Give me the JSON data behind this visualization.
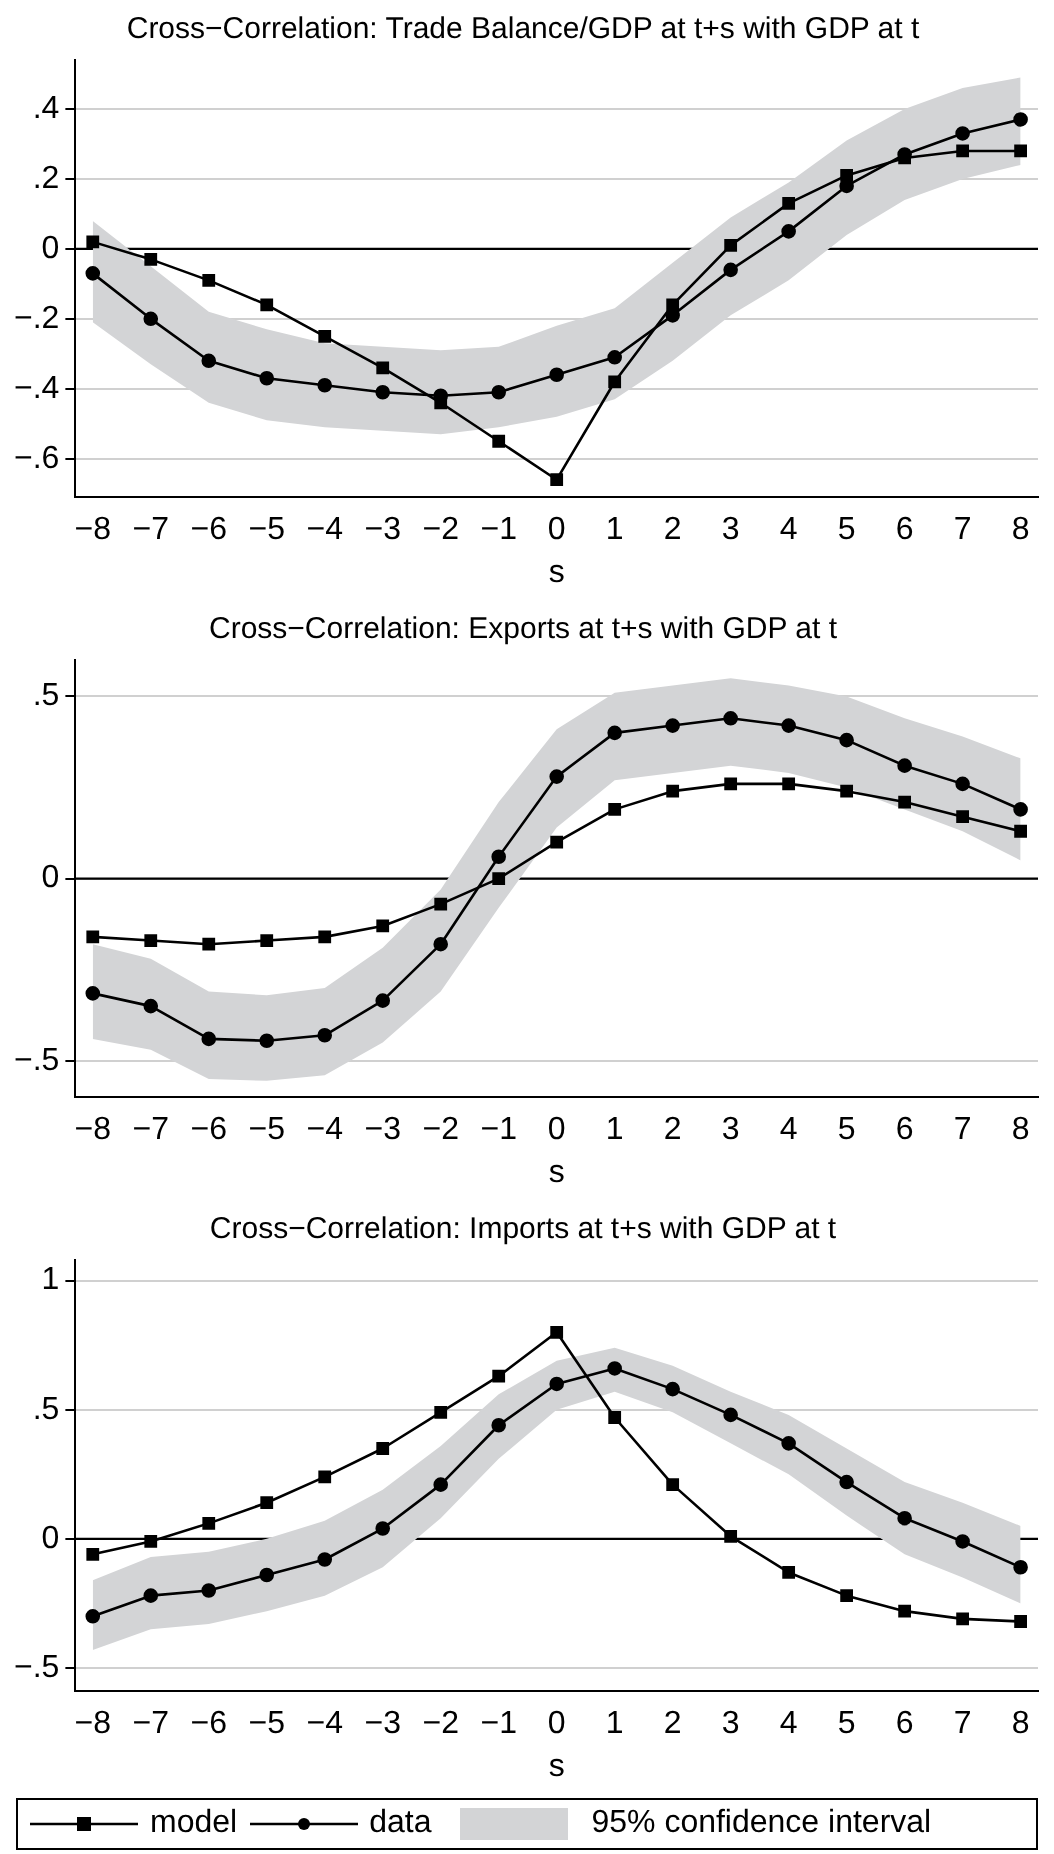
{
  "chart_data": [
    {
      "type": "line",
      "title": "Cross−Correlation: Trade Balance/GDP at t+s with GDP at t",
      "xlabel": "s",
      "x": [
        -8,
        -7,
        -6,
        -5,
        -4,
        -3,
        -2,
        -1,
        0,
        1,
        2,
        3,
        4,
        5,
        6,
        7,
        8
      ],
      "xlim": [
        -8.3,
        8.3
      ],
      "xticks": [
        {
          "value": -8,
          "label": "−8"
        },
        {
          "value": -7,
          "label": "−7"
        },
        {
          "value": -6,
          "label": "−6"
        },
        {
          "value": -5,
          "label": "−5"
        },
        {
          "value": -4,
          "label": "−4"
        },
        {
          "value": -3,
          "label": "−3"
        },
        {
          "value": -2,
          "label": "−2"
        },
        {
          "value": -1,
          "label": "−1"
        },
        0,
        1,
        2,
        3,
        4,
        5,
        6,
        7,
        8
      ],
      "ylim": [
        -0.71,
        0.54
      ],
      "yticks": [
        {
          "value": -0.6,
          "label": "−.6"
        },
        {
          "value": -0.4,
          "label": "−.4"
        },
        {
          "value": -0.2,
          "label": "−.2"
        },
        {
          "value": 0,
          "label": "0"
        },
        {
          "value": 0.2,
          "label": ".2"
        },
        {
          "value": 0.4,
          "label": ".4"
        }
      ],
      "grid": "y",
      "legend": false,
      "ref_lines": [
        {
          "axis": "y",
          "value": 0,
          "color": "#000000"
        }
      ],
      "series": [
        {
          "color": "#000000",
          "marker": "square",
          "values": [
            0.02,
            -0.03,
            -0.09,
            -0.16,
            -0.25,
            -0.34,
            -0.44,
            -0.55,
            -0.66,
            -0.38,
            -0.16,
            0.01,
            0.13,
            0.21,
            0.26,
            0.28,
            0.28
          ]
        },
        {
          "color": "#000000",
          "marker": "circle",
          "values": [
            -0.07,
            -0.2,
            -0.32,
            -0.37,
            -0.39,
            -0.41,
            -0.42,
            -0.41,
            -0.36,
            -0.31,
            -0.19,
            -0.06,
            0.05,
            0.18,
            0.27,
            0.33,
            0.37
          ],
          "lower": [
            -0.21,
            -0.33,
            -0.44,
            -0.49,
            -0.51,
            -0.52,
            -0.53,
            -0.51,
            -0.48,
            -0.43,
            -0.32,
            -0.19,
            -0.09,
            0.04,
            0.14,
            0.2,
            0.24
          ],
          "upper": [
            0.08,
            -0.05,
            -0.18,
            -0.23,
            -0.27,
            -0.28,
            -0.29,
            -0.28,
            -0.22,
            -0.17,
            -0.04,
            0.09,
            0.19,
            0.31,
            0.4,
            0.46,
            0.49
          ]
        }
      ]
    },
    {
      "type": "line",
      "title": "Cross−Correlation: Exports at t+s with GDP at t",
      "xlabel": "s",
      "x": [
        -8,
        -7,
        -6,
        -5,
        -4,
        -3,
        -2,
        -1,
        0,
        1,
        2,
        3,
        4,
        5,
        6,
        7,
        8
      ],
      "xlim": [
        -8.3,
        8.3
      ],
      "xticks": [
        {
          "value": -8,
          "label": "−8"
        },
        {
          "value": -7,
          "label": "−7"
        },
        {
          "value": -6,
          "label": "−6"
        },
        {
          "value": -5,
          "label": "−5"
        },
        {
          "value": -4,
          "label": "−4"
        },
        {
          "value": -3,
          "label": "−3"
        },
        {
          "value": -2,
          "label": "−2"
        },
        {
          "value": -1,
          "label": "−1"
        },
        0,
        1,
        2,
        3,
        4,
        5,
        6,
        7,
        8
      ],
      "ylim": [
        -0.6,
        0.6
      ],
      "yticks": [
        {
          "value": -0.5,
          "label": "−.5"
        },
        {
          "value": 0,
          "label": "0"
        },
        {
          "value": 0.5,
          "label": ".5"
        }
      ],
      "grid": "y",
      "legend": false,
      "ref_lines": [
        {
          "axis": "y",
          "value": 0,
          "color": "#000000"
        }
      ],
      "series": [
        {
          "color": "#000000",
          "marker": "square",
          "values": [
            -0.16,
            -0.17,
            -0.18,
            -0.17,
            -0.16,
            -0.13,
            -0.07,
            0,
            0.1,
            0.19,
            0.24,
            0.26,
            0.26,
            0.24,
            0.21,
            0.17,
            0.13
          ]
        },
        {
          "color": "#000000",
          "marker": "circle",
          "values": [
            -0.315,
            -0.35,
            -0.44,
            -0.445,
            -0.43,
            -0.335,
            -0.18,
            0.06,
            0.28,
            0.4,
            0.42,
            0.44,
            0.42,
            0.38,
            0.31,
            0.26,
            0.19
          ],
          "lower": [
            -0.44,
            -0.47,
            -0.55,
            -0.555,
            -0.54,
            -0.45,
            -0.31,
            -0.08,
            0.14,
            0.27,
            0.29,
            0.31,
            0.29,
            0.25,
            0.19,
            0.13,
            0.05
          ],
          "upper": [
            -0.18,
            -0.22,
            -0.31,
            -0.32,
            -0.3,
            -0.19,
            -0.03,
            0.21,
            0.41,
            0.51,
            0.53,
            0.55,
            0.53,
            0.5,
            0.44,
            0.39,
            0.33
          ]
        }
      ]
    },
    {
      "type": "line",
      "title": "Cross−Correlation: Imports at t+s with GDP at t",
      "xlabel": "s",
      "x": [
        -8,
        -7,
        -6,
        -5,
        -4,
        -3,
        -2,
        -1,
        0,
        1,
        2,
        3,
        4,
        5,
        6,
        7,
        8
      ],
      "xlim": [
        -8.3,
        8.3
      ],
      "xticks": [
        {
          "value": -8,
          "label": "−8"
        },
        {
          "value": -7,
          "label": "−7"
        },
        {
          "value": -6,
          "label": "−6"
        },
        {
          "value": -5,
          "label": "−5"
        },
        {
          "value": -4,
          "label": "−4"
        },
        {
          "value": -3,
          "label": "−3"
        },
        {
          "value": -2,
          "label": "−2"
        },
        {
          "value": -1,
          "label": "−1"
        },
        0,
        1,
        2,
        3,
        4,
        5,
        6,
        7,
        8
      ],
      "ylim": [
        -0.59,
        1.08
      ],
      "yticks": [
        {
          "value": -0.5,
          "label": "−.5"
        },
        {
          "value": 0,
          "label": "0"
        },
        {
          "value": 0.5,
          "label": ".5"
        },
        {
          "value": 1,
          "label": "1"
        }
      ],
      "grid": "y",
      "legend": "bottom",
      "annotations": [
        "95% confidence interval"
      ],
      "ref_lines": [
        {
          "axis": "y",
          "value": 0,
          "color": "#000000"
        }
      ],
      "series": [
        {
          "name": "model",
          "color": "#000000",
          "marker": "square",
          "values": [
            -0.06,
            -0.01,
            0.06,
            0.14,
            0.24,
            0.35,
            0.49,
            0.63,
            0.8,
            0.47,
            0.21,
            0.01,
            -0.13,
            -0.22,
            -0.28,
            -0.31,
            -0.32
          ]
        },
        {
          "name": "data",
          "color": "#000000",
          "marker": "circle",
          "values": [
            -0.3,
            -0.22,
            -0.2,
            -0.14,
            -0.08,
            0.04,
            0.21,
            0.44,
            0.6,
            0.66,
            0.58,
            0.48,
            0.37,
            0.22,
            0.08,
            -0.01,
            -0.11
          ],
          "lower": [
            -0.43,
            -0.35,
            -0.33,
            -0.28,
            -0.22,
            -0.11,
            0.08,
            0.31,
            0.5,
            0.57,
            0.49,
            0.37,
            0.25,
            0.09,
            -0.06,
            -0.15,
            -0.25
          ],
          "upper": [
            -0.16,
            -0.07,
            -0.05,
            0,
            0.07,
            0.19,
            0.36,
            0.56,
            0.69,
            0.74,
            0.67,
            0.57,
            0.48,
            0.35,
            0.22,
            0.14,
            0.05
          ]
        }
      ]
    }
  ]
}
